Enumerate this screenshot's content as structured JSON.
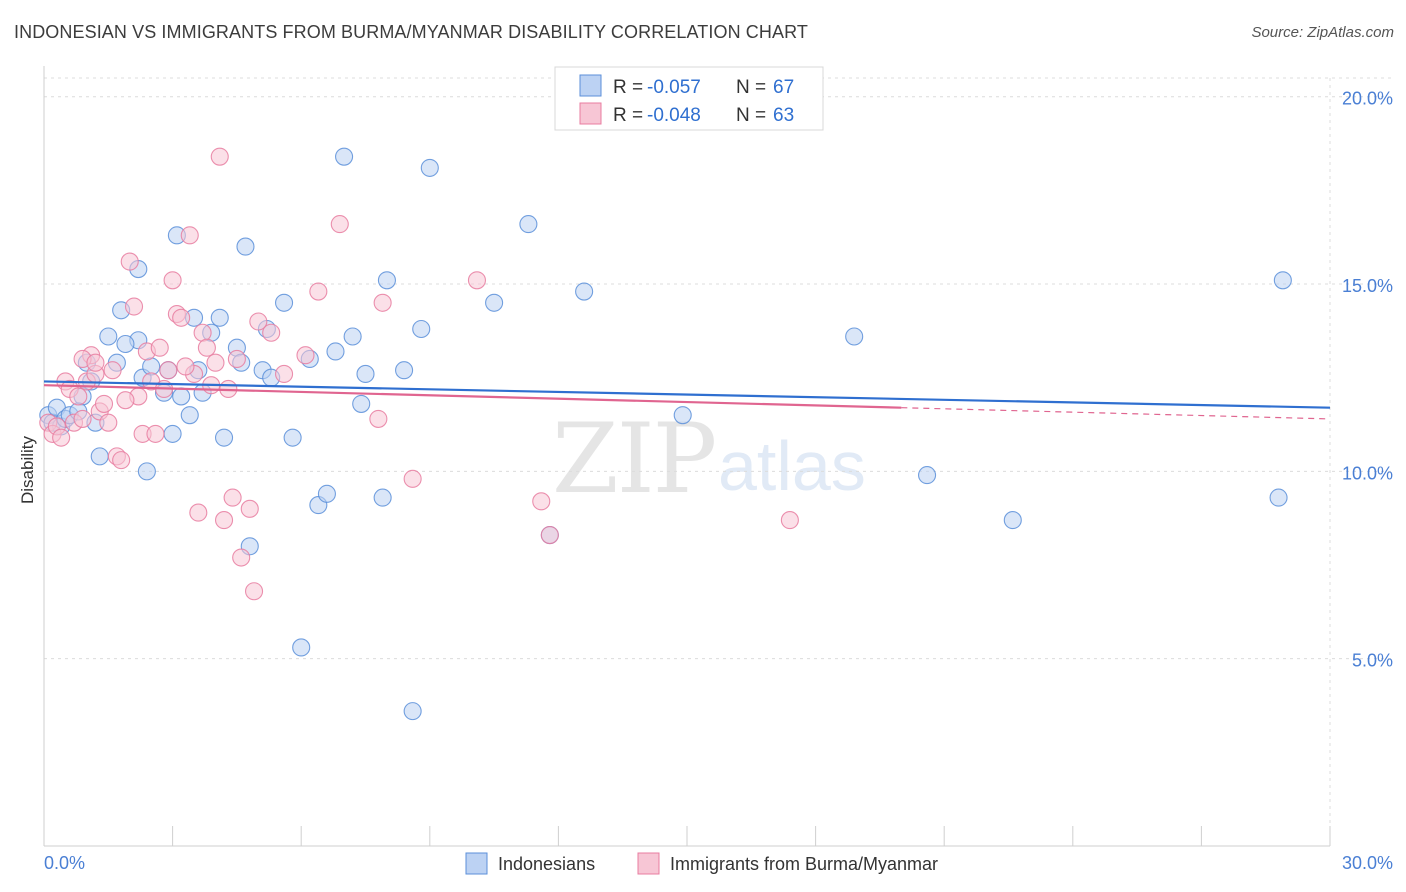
{
  "header": {
    "title": "INDONESIAN VS IMMIGRANTS FROM BURMA/MYANMAR DISABILITY CORRELATION CHART",
    "source": "Source: ZipAtlas.com"
  },
  "watermark": {
    "zip": "ZIP",
    "atlas": "atlas"
  },
  "chart_data": {
    "type": "scatter",
    "ylabel": "Disability",
    "xlabel": "",
    "xlim": [
      0,
      30
    ],
    "ylim": [
      0,
      20.5
    ],
    "x_tick_labels": [
      {
        "value": 0,
        "label": "0.0%"
      },
      {
        "value": 30,
        "label": "30.0%"
      }
    ],
    "y_tick_labels": [
      {
        "value": 5,
        "label": "5.0%"
      },
      {
        "value": 10,
        "label": "10.0%"
      },
      {
        "value": 15,
        "label": "15.0%"
      },
      {
        "value": 20,
        "label": "20.0%"
      }
    ],
    "grid": true,
    "legend_top": [
      {
        "r_label": "R = ",
        "r_value": "-0.057",
        "n_label": "N = ",
        "n_value": "67",
        "color": "#5b8fd9",
        "fill": "#bcd2f3"
      },
      {
        "r_label": "R = ",
        "r_value": "-0.048",
        "n_label": "N = ",
        "n_value": "63",
        "color": "#e87ca0",
        "fill": "#f7c6d5"
      }
    ],
    "series": [
      {
        "name": "Indonesians",
        "color": "#5b8fd9",
        "fill": "#bcd2f3",
        "trend": {
          "x0": 0,
          "y0": 12.4,
          "x1": 30,
          "y1": 11.7,
          "solid_to": 30,
          "color": "#2f6fd0"
        },
        "points": [
          [
            0.1,
            11.5
          ],
          [
            0.2,
            11.3
          ],
          [
            0.3,
            11.7
          ],
          [
            0.4,
            11.2
          ],
          [
            0.5,
            11.4
          ],
          [
            0.6,
            11.5
          ],
          [
            0.9,
            12.0
          ],
          [
            1.0,
            12.9
          ],
          [
            1.1,
            12.4
          ],
          [
            1.2,
            11.3
          ],
          [
            1.5,
            13.6
          ],
          [
            1.7,
            12.9
          ],
          [
            1.8,
            14.3
          ],
          [
            2.2,
            13.5
          ],
          [
            2.3,
            12.5
          ],
          [
            2.4,
            10.0
          ],
          [
            2.2,
            15.4
          ],
          [
            2.9,
            12.7
          ],
          [
            3.0,
            11.0
          ],
          [
            3.2,
            12.0
          ],
          [
            3.5,
            14.1
          ],
          [
            3.6,
            12.7
          ],
          [
            3.7,
            12.1
          ],
          [
            3.9,
            13.7
          ],
          [
            4.2,
            10.9
          ],
          [
            4.7,
            16.0
          ],
          [
            4.8,
            8.0
          ],
          [
            5.1,
            12.7
          ],
          [
            5.3,
            12.5
          ],
          [
            5.6,
            14.5
          ],
          [
            5.8,
            10.9
          ],
          [
            6.0,
            5.3
          ],
          [
            6.2,
            13.0
          ],
          [
            6.4,
            9.1
          ],
          [
            6.6,
            9.4
          ],
          [
            7.0,
            18.4
          ],
          [
            7.2,
            13.6
          ],
          [
            7.5,
            12.6
          ],
          [
            7.9,
            9.3
          ],
          [
            8.0,
            15.1
          ],
          [
            8.4,
            12.7
          ],
          [
            8.6,
            3.6
          ],
          [
            8.8,
            13.8
          ],
          [
            9.0,
            18.1
          ],
          [
            10.5,
            14.5
          ],
          [
            11.3,
            16.6
          ],
          [
            11.8,
            8.3
          ],
          [
            12.6,
            14.8
          ],
          [
            14.9,
            11.5
          ],
          [
            18.9,
            13.6
          ],
          [
            20.6,
            9.9
          ],
          [
            22.6,
            8.7
          ],
          [
            28.8,
            9.3
          ],
          [
            28.9,
            15.1
          ],
          [
            4.5,
            13.3
          ],
          [
            3.1,
            16.3
          ],
          [
            1.9,
            13.4
          ],
          [
            5.2,
            13.8
          ],
          [
            0.8,
            11.6
          ],
          [
            2.5,
            12.8
          ],
          [
            6.8,
            13.2
          ],
          [
            4.6,
            12.9
          ],
          [
            7.4,
            11.8
          ],
          [
            4.1,
            14.1
          ],
          [
            3.4,
            11.5
          ],
          [
            1.3,
            10.4
          ],
          [
            2.8,
            12.1
          ]
        ]
      },
      {
        "name": "Immigrants from Burma/Myanmar",
        "color": "#e87ca0",
        "fill": "#f7c6d5",
        "trend": {
          "x0": 0,
          "y0": 12.3,
          "x1": 30,
          "y1": 11.4,
          "solid_to": 20.0,
          "color": "#e06590"
        },
        "points": [
          [
            0.1,
            11.3
          ],
          [
            0.2,
            11.0
          ],
          [
            0.3,
            11.2
          ],
          [
            0.4,
            10.9
          ],
          [
            0.5,
            12.4
          ],
          [
            0.6,
            12.2
          ],
          [
            0.7,
            11.3
          ],
          [
            0.8,
            12.0
          ],
          [
            0.9,
            11.4
          ],
          [
            1.0,
            12.4
          ],
          [
            1.1,
            13.1
          ],
          [
            1.2,
            12.6
          ],
          [
            1.3,
            11.6
          ],
          [
            1.4,
            11.8
          ],
          [
            1.5,
            11.3
          ],
          [
            1.6,
            12.7
          ],
          [
            1.7,
            10.4
          ],
          [
            1.8,
            10.3
          ],
          [
            2.0,
            15.6
          ],
          [
            2.1,
            14.4
          ],
          [
            2.2,
            12.0
          ],
          [
            2.3,
            11.0
          ],
          [
            2.4,
            13.2
          ],
          [
            2.6,
            11.0
          ],
          [
            2.7,
            13.3
          ],
          [
            2.9,
            12.7
          ],
          [
            3.0,
            15.1
          ],
          [
            3.1,
            14.2
          ],
          [
            3.2,
            14.1
          ],
          [
            3.4,
            16.3
          ],
          [
            3.5,
            12.6
          ],
          [
            3.6,
            8.9
          ],
          [
            3.7,
            13.7
          ],
          [
            3.8,
            13.3
          ],
          [
            3.9,
            12.3
          ],
          [
            4.0,
            12.9
          ],
          [
            4.1,
            18.4
          ],
          [
            4.2,
            8.7
          ],
          [
            4.4,
            9.3
          ],
          [
            4.5,
            13.0
          ],
          [
            4.6,
            7.7
          ],
          [
            4.8,
            9.0
          ],
          [
            4.9,
            6.8
          ],
          [
            5.0,
            14.0
          ],
          [
            5.3,
            13.7
          ],
          [
            6.4,
            14.8
          ],
          [
            6.9,
            16.6
          ],
          [
            7.8,
            11.4
          ],
          [
            7.9,
            14.5
          ],
          [
            8.6,
            9.8
          ],
          [
            10.1,
            15.1
          ],
          [
            11.6,
            9.2
          ],
          [
            11.8,
            8.3
          ],
          [
            17.4,
            8.7
          ],
          [
            2.5,
            12.4
          ],
          [
            1.9,
            11.9
          ],
          [
            0.9,
            13.0
          ],
          [
            3.3,
            12.8
          ],
          [
            4.3,
            12.2
          ],
          [
            5.6,
            12.6
          ],
          [
            6.1,
            13.1
          ],
          [
            2.8,
            12.2
          ],
          [
            1.2,
            12.9
          ]
        ]
      }
    ]
  }
}
